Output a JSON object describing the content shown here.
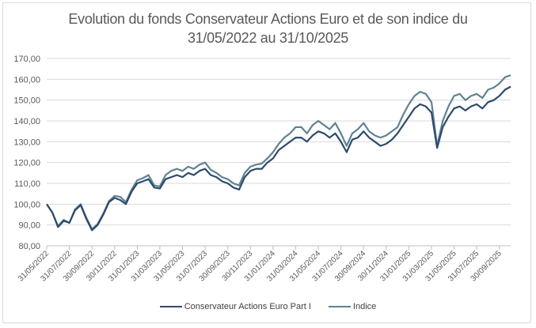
{
  "chart_data": {
    "type": "line",
    "title_lines": [
      "Evolution du fonds Conservateur Actions Euro et de son indice du",
      "31/05/2022 au 31/10/2025"
    ],
    "xlabel": "",
    "ylabel": "",
    "ylim": [
      80,
      170
    ],
    "yticks": [
      80,
      90,
      100,
      110,
      120,
      130,
      140,
      150,
      160,
      170
    ],
    "ytick_labels": [
      "80,00",
      "90,00",
      "100,00",
      "110,00",
      "120,00",
      "130,00",
      "140,00",
      "150,00",
      "160,00",
      "170,00"
    ],
    "x_unit": "months since 31/05/2022",
    "xlim": [
      0,
      41
    ],
    "xtick_positions": [
      0,
      2,
      4,
      6,
      8,
      10,
      12,
      14,
      16,
      18,
      20,
      22,
      24,
      26,
      28,
      30,
      32,
      34,
      36,
      38,
      40
    ],
    "xtick_labels": [
      "31/05/2022",
      "31/07/2022",
      "30/09/2022",
      "30/11/2022",
      "31/01/2023",
      "31/03/2023",
      "31/05/2023",
      "31/07/2023",
      "30/09/2023",
      "30/11/2023",
      "31/01/2024",
      "31/03/2024",
      "31/05/2024",
      "31/07/2024",
      "30/09/2024",
      "30/11/2024",
      "31/01/2025",
      "31/03/2025",
      "31/05/2025",
      "31/07/2025",
      "30/09/2025"
    ],
    "grid": true,
    "legend_position": "bottom",
    "x": [
      0,
      0.5,
      1,
      1.5,
      2,
      2.5,
      3,
      3.5,
      4,
      4.5,
      5,
      5.5,
      6,
      6.5,
      7,
      7.5,
      8,
      8.5,
      9,
      9.5,
      10,
      10.5,
      11,
      11.5,
      12,
      12.5,
      13,
      13.5,
      14,
      14.5,
      15,
      15.5,
      16,
      16.5,
      17,
      17.5,
      18,
      18.5,
      19,
      19.5,
      20,
      20.5,
      21,
      21.5,
      22,
      22.5,
      23,
      23.5,
      24,
      24.5,
      25,
      25.5,
      26,
      26.5,
      27,
      27.5,
      28,
      28.5,
      29,
      29.5,
      30,
      30.5,
      31,
      31.5,
      32,
      32.5,
      33,
      33.5,
      34,
      34.5,
      35,
      35.5,
      36,
      36.5,
      37,
      37.5,
      38,
      38.5,
      39,
      39.5,
      40,
      40.5,
      41
    ],
    "series": [
      {
        "name": "Conservateur Actions Euro Part I",
        "color": "#2e4a6b",
        "values": [
          100,
          96,
          89,
          92,
          91,
          97,
          99.5,
          93,
          87.5,
          90,
          95,
          101,
          103,
          102,
          100,
          106,
          110,
          111,
          112,
          108,
          107.5,
          112,
          113,
          114,
          113,
          115,
          114,
          116,
          117,
          114,
          113,
          111,
          110,
          108,
          107,
          113,
          116,
          117,
          117,
          120,
          122,
          126,
          128,
          130,
          132,
          132,
          130,
          133,
          135,
          134,
          132,
          134,
          130,
          125,
          131,
          132,
          135,
          132,
          130,
          128,
          129,
          131,
          134,
          138,
          142,
          146,
          148,
          147,
          144,
          127,
          137,
          142,
          146,
          147,
          145,
          147,
          148,
          146,
          149,
          150,
          152,
          155,
          156.5
        ]
      },
      {
        "name": "Indice",
        "color": "#5f8291",
        "values": [
          100,
          96,
          89.5,
          92.5,
          91,
          97.5,
          100,
          93.5,
          88,
          90.5,
          95.5,
          101.5,
          104,
          103.5,
          101,
          107,
          111.5,
          112.5,
          114,
          109,
          108.5,
          114,
          116,
          117,
          116,
          118,
          117,
          119,
          120,
          116.5,
          115,
          113,
          112,
          110,
          109,
          115,
          118,
          119,
          119.5,
          122,
          125,
          129,
          132,
          134,
          137,
          137,
          134,
          138,
          140,
          138,
          136,
          139,
          134,
          128,
          134,
          136,
          139,
          135,
          133,
          132,
          133,
          135,
          137,
          143,
          148,
          152,
          154,
          153,
          149,
          128,
          140,
          147,
          152,
          153,
          150,
          152,
          153,
          151,
          155,
          156,
          158,
          161,
          162
        ]
      }
    ]
  }
}
